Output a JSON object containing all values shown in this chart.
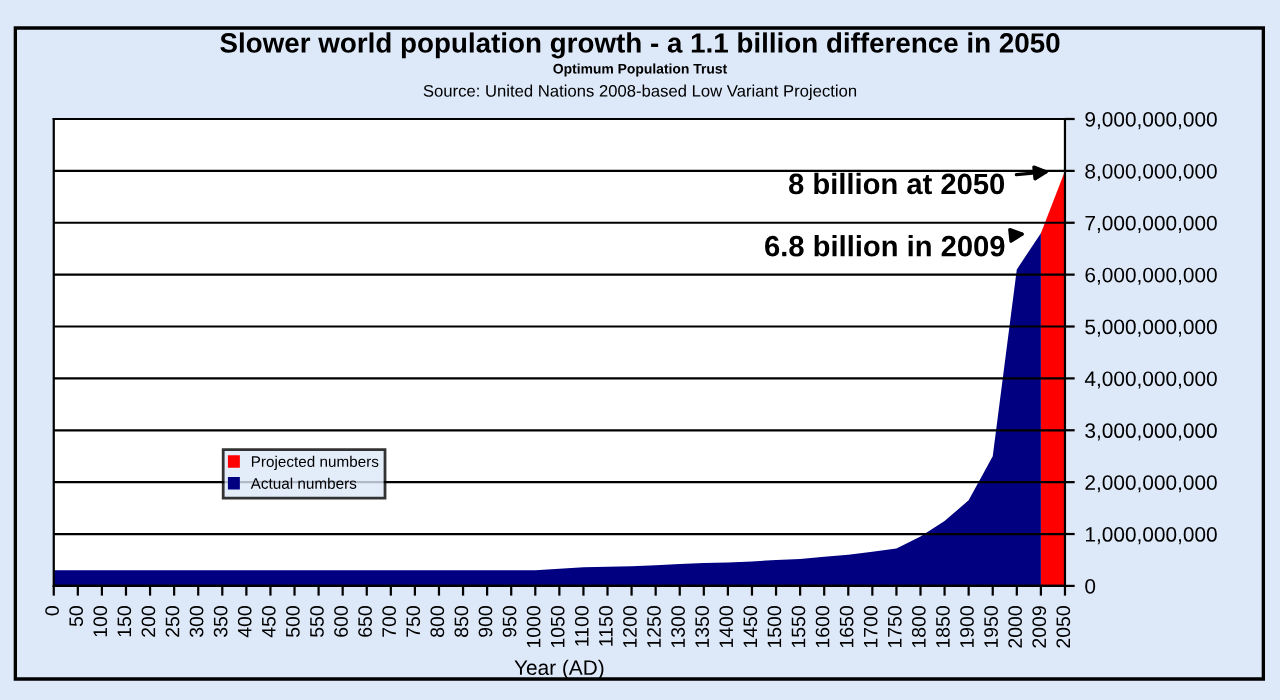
{
  "chart_data": {
    "type": "area",
    "title": "Slower world population growth - a 1.1 billion difference in 2050",
    "subtitle": "Optimum Population Trust",
    "annotations": [
      "Source: United Nations 2008-based Low Variant Projection",
      {
        "text": "8 billion at 2050",
        "x": "2050",
        "y": 8000000000
      },
      {
        "text": "6.8 billion in 2009",
        "x": "2009",
        "y": 6800000000
      }
    ],
    "xlabel": "Year (AD)",
    "categories": [
      "0",
      "50",
      "100",
      "150",
      "200",
      "250",
      "300",
      "350",
      "400",
      "450",
      "500",
      "550",
      "600",
      "650",
      "700",
      "750",
      "800",
      "850",
      "900",
      "950",
      "1000",
      "1050",
      "1100",
      "1150",
      "1200",
      "1250",
      "1300",
      "1350",
      "1400",
      "1450",
      "1500",
      "1550",
      "1600",
      "1650",
      "1700",
      "1750",
      "1800",
      "1850",
      "1900",
      "1950",
      "2000",
      "2009",
      "2050"
    ],
    "series": [
      {
        "name": "Projected numbers",
        "color": "#ff0000",
        "values": [
          null,
          null,
          null,
          null,
          null,
          null,
          null,
          null,
          null,
          null,
          null,
          null,
          null,
          null,
          null,
          null,
          null,
          null,
          null,
          null,
          null,
          null,
          null,
          null,
          null,
          null,
          null,
          null,
          null,
          null,
          null,
          null,
          null,
          null,
          null,
          null,
          null,
          null,
          null,
          null,
          null,
          6800000000,
          8000000000
        ]
      },
      {
        "name": "Actual numbers",
        "color": "#000080",
        "values": [
          300000000,
          300000000,
          300000000,
          300000000,
          300000000,
          300000000,
          300000000,
          300000000,
          300000000,
          300000000,
          300000000,
          300000000,
          300000000,
          300000000,
          300000000,
          300000000,
          300000000,
          300000000,
          300000000,
          300000000,
          300000000,
          330000000,
          360000000,
          370000000,
          380000000,
          400000000,
          420000000,
          440000000,
          450000000,
          470000000,
          500000000,
          520000000,
          560000000,
          600000000,
          660000000,
          720000000,
          950000000,
          1250000000,
          1650000000,
          2500000000,
          6100000000,
          6800000000,
          null
        ]
      }
    ],
    "ylim": [
      0,
      9000000000
    ],
    "yticks": [
      0,
      {
        "value": 1000000000,
        "label": "1,000,000,000"
      },
      {
        "value": 2000000000,
        "label": "2,000,000,000"
      },
      {
        "value": 3000000000,
        "label": "3,000,000,000"
      },
      {
        "value": 4000000000,
        "label": "4,000,000,000"
      },
      {
        "value": 5000000000,
        "label": "5,000,000,000"
      },
      {
        "value": 6000000000,
        "label": "6,000,000,000"
      },
      {
        "value": 7000000000,
        "label": "7,000,000,000"
      },
      {
        "value": 8000000000,
        "label": "8,000,000,000"
      },
      {
        "value": 9000000000,
        "label": "9,000,000,000"
      }
    ],
    "grid": "y",
    "legend": "left"
  }
}
